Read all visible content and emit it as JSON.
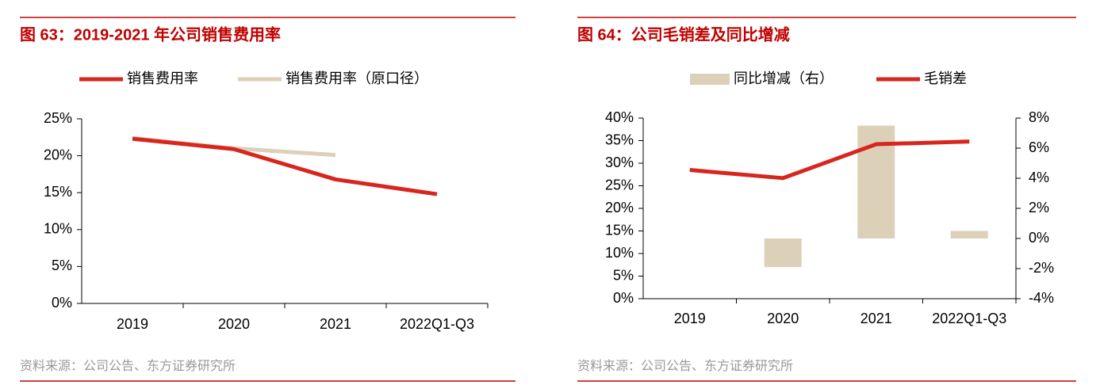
{
  "chart_data": [
    {
      "type": "line",
      "title": "图 63：2019-2021 年公司销售费用率",
      "categories": [
        "2019",
        "2020",
        "2021",
        "2022Q1-Q3"
      ],
      "series": [
        {
          "name": "销售费用率",
          "color": "#d7261e",
          "values": [
            22.3,
            20.9,
            16.8,
            14.8
          ]
        },
        {
          "name": "销售费用率（原口径）",
          "color": "#ddd0b8",
          "values": [
            22.4,
            21.0,
            20.1,
            null
          ]
        }
      ],
      "ylim": [
        0,
        25
      ],
      "yticks": [
        {
          "value": 0,
          "label": "0%"
        },
        {
          "value": 5,
          "label": "5%"
        },
        {
          "value": 10,
          "label": "10%"
        },
        {
          "value": 15,
          "label": "15%"
        },
        {
          "value": 20,
          "label": "20%"
        },
        {
          "value": 25,
          "label": "25%"
        }
      ],
      "source": "资料来源：公司公告、东方证券研究所"
    },
    {
      "type": "combo",
      "title": "图 64：公司毛销差及同比增减",
      "categories": [
        "2019",
        "2020",
        "2021",
        "2022Q1-Q3"
      ],
      "series": [
        {
          "name": "同比增减（右）",
          "type": "bar",
          "axis": "y2",
          "color": "#ddd0b8",
          "values": [
            null,
            -1.9,
            7.5,
            0.5
          ]
        },
        {
          "name": "毛销差",
          "type": "line",
          "color": "#d7261e",
          "values": [
            28.5,
            26.7,
            34.2,
            34.8
          ]
        }
      ],
      "ylim": [
        0,
        40
      ],
      "yticks": [
        {
          "value": 0,
          "label": "0%"
        },
        {
          "value": 5,
          "label": "5%"
        },
        {
          "value": 10,
          "label": "10%"
        },
        {
          "value": 15,
          "label": "15%"
        },
        {
          "value": 20,
          "label": "20%"
        },
        {
          "value": 25,
          "label": "25%"
        },
        {
          "value": 30,
          "label": "30%"
        },
        {
          "value": 35,
          "label": "35%"
        },
        {
          "value": 40,
          "label": "40%"
        }
      ],
      "y2lim": [
        -4,
        8
      ],
      "y2ticks": [
        {
          "value": -4,
          "label": "-4%"
        },
        {
          "value": -2,
          "label": "-2%"
        },
        {
          "value": 0,
          "label": "0%"
        },
        {
          "value": 2,
          "label": "2%"
        },
        {
          "value": 4,
          "label": "4%"
        },
        {
          "value": 6,
          "label": "6%"
        },
        {
          "value": 8,
          "label": "8%"
        }
      ],
      "source": "资料来源：公司公告、东方证券研究所"
    }
  ]
}
